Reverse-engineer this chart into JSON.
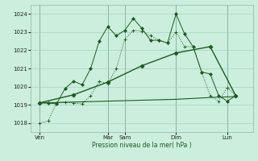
{
  "xlabel": "Pression niveau de la mer( hPa )",
  "bg_color": "#cceedd",
  "grid_color": "#99ccbb",
  "line_color": "#1a5c1a",
  "ylim": [
    1017.5,
    1024.5
  ],
  "yticks": [
    1018,
    1019,
    1020,
    1021,
    1022,
    1023,
    1024
  ],
  "x_day_labels": [
    "Ven",
    "Mar",
    "Sam",
    "Dim",
    "Lun"
  ],
  "x_day_positions": [
    0,
    48,
    60,
    96,
    132
  ],
  "xlim": [
    -6,
    150
  ],
  "series1_x": [
    0,
    6,
    12,
    18,
    24,
    30,
    36,
    42,
    48,
    54,
    60,
    66,
    72,
    78,
    84,
    90,
    96,
    102,
    108,
    114,
    120,
    126,
    132,
    138
  ],
  "series1_y": [
    1018.0,
    1018.1,
    1019.1,
    1019.15,
    1019.1,
    1019.05,
    1019.5,
    1020.3,
    1020.15,
    1021.0,
    1022.6,
    1023.1,
    1023.05,
    1022.8,
    1022.55,
    1022.4,
    1023.0,
    1022.2,
    1022.2,
    1020.8,
    1019.5,
    1019.2,
    1019.95,
    1019.5
  ],
  "series2_x": [
    0,
    6,
    12,
    18,
    24,
    30,
    36,
    42,
    48,
    54,
    60,
    66,
    72,
    78,
    84,
    90,
    96,
    102,
    108,
    114,
    120,
    126,
    132,
    138
  ],
  "series2_y": [
    1019.1,
    1019.1,
    1019.05,
    1019.9,
    1020.3,
    1020.1,
    1021.0,
    1022.5,
    1023.3,
    1022.8,
    1023.1,
    1023.75,
    1023.2,
    1022.55,
    1022.55,
    1022.4,
    1024.0,
    1022.9,
    1022.2,
    1020.8,
    1020.7,
    1019.5,
    1019.2,
    1019.5
  ],
  "series3_x": [
    0,
    24,
    48,
    72,
    96,
    120,
    138
  ],
  "series3_y": [
    1019.1,
    1019.55,
    1020.25,
    1021.15,
    1021.85,
    1022.2,
    1019.5
  ],
  "series4_x": [
    0,
    24,
    48,
    72,
    96,
    120,
    138
  ],
  "series4_y": [
    1019.1,
    1019.15,
    1019.2,
    1019.25,
    1019.3,
    1019.4,
    1019.45
  ]
}
